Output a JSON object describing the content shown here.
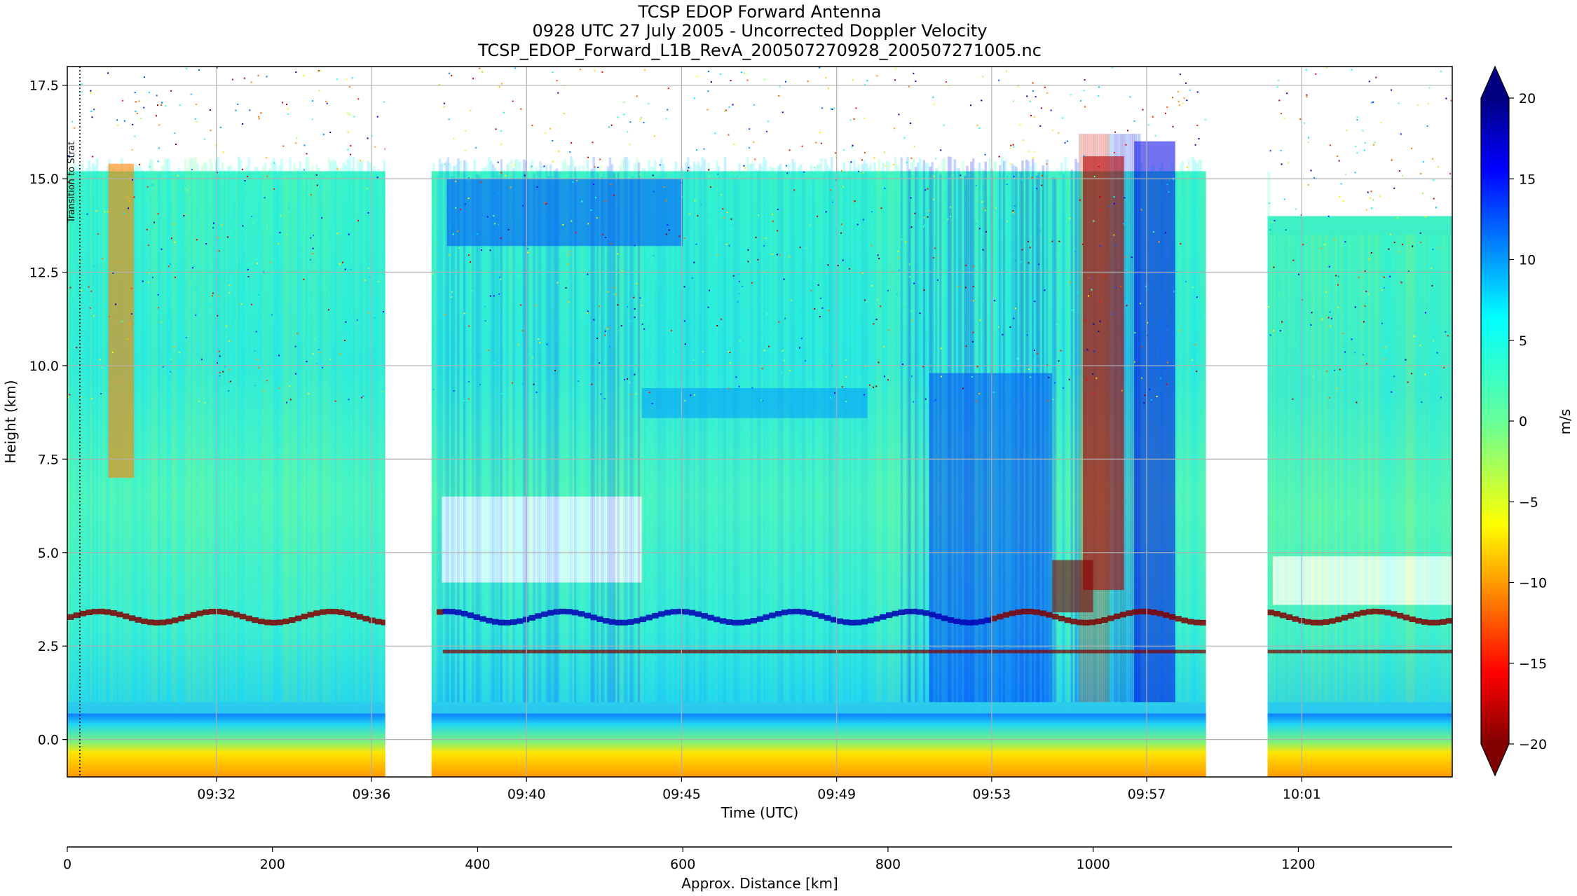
{
  "chart_data": {
    "type": "heatmap",
    "title": [
      "TCSP EDOP Forward Antenna",
      "0928 UTC 27 July 2005 - Uncorrected Doppler Velocity",
      "TCSP_EDOP_Forward_L1B_RevA_200507270928_200507271005.nc"
    ],
    "xlabel": "Time (UTC)",
    "ylabel": "Height (km)",
    "x_ticks": [
      "09:32",
      "09:36",
      "09:40",
      "09:45",
      "09:49",
      "09:53",
      "09:57",
      "10:01"
    ],
    "y_ticks": [
      "0.0",
      "2.5",
      "5.0",
      "7.5",
      "10.0",
      "12.5",
      "15.0",
      "17.5"
    ],
    "ylim": [
      -1.0,
      18.0
    ],
    "distance_axis": {
      "label": "Approx. Distance [km]",
      "ticks": [
        "0",
        "200",
        "400",
        "600",
        "800",
        "1000",
        "1200"
      ],
      "range": [
        0,
        1350
      ]
    },
    "colorbar": {
      "label": "m/s",
      "colormap": "jet_r",
      "range": [
        -20,
        20
      ],
      "extend": "both",
      "ticks": [
        "20",
        "15",
        "10",
        "5",
        "0",
        "−5",
        "−10",
        "−15",
        "−20"
      ]
    },
    "annotation": "Transition to Strat",
    "data_gaps_distance_km": [
      [
        310,
        355
      ],
      [
        1110,
        1170
      ]
    ],
    "features": {
      "surface_return_height_km": 0.7,
      "melting_layer_height_km": 3.2,
      "anvil_base_height_km": 6.5,
      "cloud_top_height_km": 15.0,
      "convective_core_distance_km": [
        985,
        1045
      ],
      "core_velocity_range": [
        -20,
        20
      ]
    }
  }
}
